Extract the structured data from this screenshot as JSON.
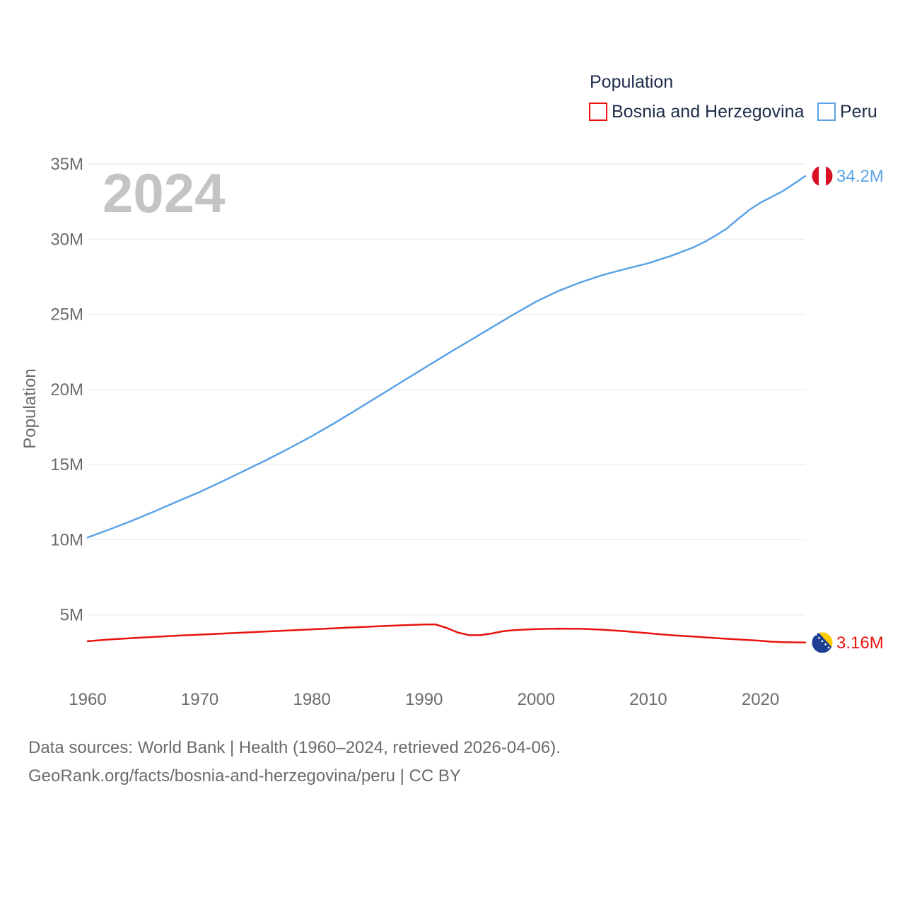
{
  "chart_data": {
    "type": "line",
    "title": "",
    "year_label": "2024",
    "ylabel": "Population",
    "xlabel": "",
    "xlim": [
      1960,
      2024
    ],
    "ylim": [
      0,
      35000000
    ],
    "x_ticks": [
      1960,
      1970,
      1980,
      1990,
      2000,
      2010,
      2020
    ],
    "y_ticks": [
      {
        "value": 5000000,
        "label": "5M"
      },
      {
        "value": 10000000,
        "label": "10M"
      },
      {
        "value": 15000000,
        "label": "15M"
      },
      {
        "value": 20000000,
        "label": "20M"
      },
      {
        "value": 25000000,
        "label": "25M"
      },
      {
        "value": 30000000,
        "label": "30M"
      },
      {
        "value": 35000000,
        "label": "35M"
      }
    ],
    "grid": true,
    "legend": {
      "title": "Population",
      "placement": "top-right",
      "entries": [
        "Bosnia and Herzegovina",
        "Peru"
      ]
    },
    "series": [
      {
        "name": "Bosnia and Herzegovina",
        "color": "#e8130f",
        "flag": "bosnia-flag",
        "end_label": "3.16M",
        "x": [
          1960,
          1962,
          1964,
          1966,
          1968,
          1970,
          1972,
          1974,
          1976,
          1978,
          1980,
          1982,
          1984,
          1986,
          1988,
          1990,
          1991,
          1992,
          1993,
          1994,
          1995,
          1996,
          1997,
          1998,
          2000,
          2002,
          2004,
          2006,
          2008,
          2010,
          2012,
          2014,
          2016,
          2018,
          2020,
          2021,
          2022,
          2024
        ],
        "y": [
          3250000,
          3370000,
          3460000,
          3540000,
          3620000,
          3690000,
          3760000,
          3830000,
          3900000,
          3970000,
          4040000,
          4110000,
          4180000,
          4250000,
          4310000,
          4360000,
          4370000,
          4140000,
          3830000,
          3660000,
          3650000,
          3760000,
          3910000,
          3990000,
          4060000,
          4090000,
          4080000,
          4010000,
          3910000,
          3780000,
          3650000,
          3560000,
          3460000,
          3370000,
          3280000,
          3220000,
          3190000,
          3160000
        ]
      },
      {
        "name": "Peru",
        "color": "#5ba3e6",
        "flag": "peru-flag",
        "end_label": "34.2M",
        "x": [
          1960,
          1962,
          1964,
          1966,
          1968,
          1970,
          1972,
          1974,
          1976,
          1978,
          1980,
          1982,
          1984,
          1986,
          1988,
          1990,
          1992,
          1994,
          1996,
          1998,
          2000,
          2002,
          2004,
          2006,
          2008,
          2010,
          2012,
          2014,
          2015,
          2016,
          2017,
          2018,
          2019,
          2020,
          2022,
          2023,
          2024
        ],
        "y": [
          10150000,
          10700000,
          11280000,
          11900000,
          12550000,
          13180000,
          13880000,
          14600000,
          15330000,
          16100000,
          16900000,
          17760000,
          18660000,
          19580000,
          20500000,
          21420000,
          22330000,
          23220000,
          24110000,
          25000000,
          25850000,
          26560000,
          27140000,
          27630000,
          28030000,
          28400000,
          28880000,
          29450000,
          29810000,
          30240000,
          30710000,
          31340000,
          31940000,
          32430000,
          33200000,
          33690000,
          34200000
        ]
      }
    ]
  },
  "source": {
    "line1": "Data sources: World Bank | Health (1960–2024, retrieved 2026-04-06).",
    "line2": "GeoRank.org/facts/bosnia-and-herzegovina/peru | CC BY"
  }
}
